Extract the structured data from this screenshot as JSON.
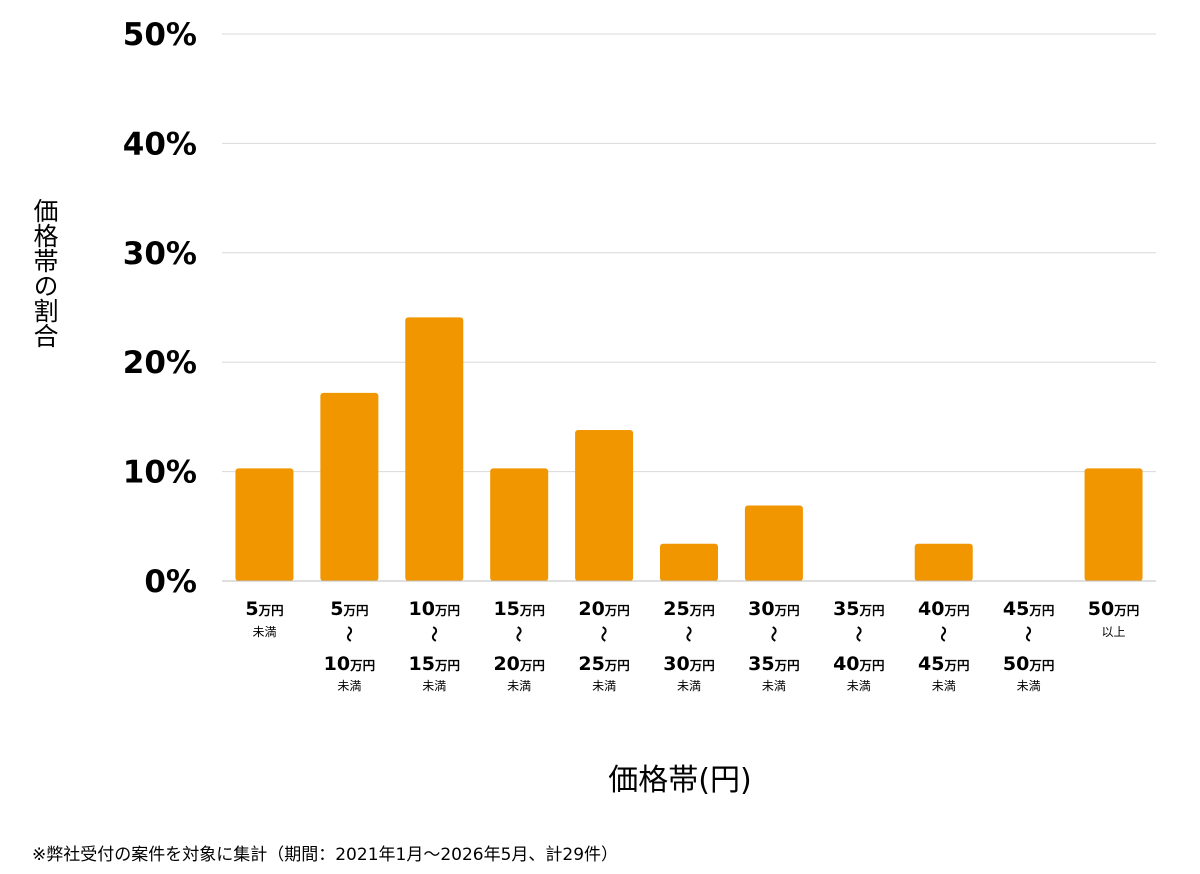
{
  "chart_data": {
    "type": "bar",
    "xlabel": "価格帯(円)",
    "ylabel": "価格帯の割合",
    "ylim": [
      0,
      50
    ],
    "yticks": [
      "0%",
      "10%",
      "20%",
      "30%",
      "40%",
      "50%"
    ],
    "grid": true,
    "bar_color": "#f29600",
    "grid_color": "#d9d9d9",
    "categories": [
      {
        "from": "5",
        "from_unit": "万円",
        "to": "",
        "to_unit": "",
        "note": "未満"
      },
      {
        "from": "5",
        "from_unit": "万円",
        "to": "10",
        "to_unit": "万円",
        "note": "未満"
      },
      {
        "from": "10",
        "from_unit": "万円",
        "to": "15",
        "to_unit": "万円",
        "note": "未満"
      },
      {
        "from": "15",
        "from_unit": "万円",
        "to": "20",
        "to_unit": "万円",
        "note": "未満"
      },
      {
        "from": "20",
        "from_unit": "万円",
        "to": "25",
        "to_unit": "万円",
        "note": "未満"
      },
      {
        "from": "25",
        "from_unit": "万円",
        "to": "30",
        "to_unit": "万円",
        "note": "未満"
      },
      {
        "from": "30",
        "from_unit": "万円",
        "to": "35",
        "to_unit": "万円",
        "note": "未満"
      },
      {
        "from": "35",
        "from_unit": "万円",
        "to": "40",
        "to_unit": "万円",
        "note": "未満"
      },
      {
        "from": "40",
        "from_unit": "万円",
        "to": "45",
        "to_unit": "万円",
        "note": "未満"
      },
      {
        "from": "45",
        "from_unit": "万円",
        "to": "50",
        "to_unit": "万円",
        "note": "未満"
      },
      {
        "from": "50",
        "from_unit": "万円",
        "to": "",
        "to_unit": "",
        "note": "以上"
      }
    ],
    "range_mark": "〜",
    "values": [
      10.3,
      17.2,
      24.1,
      10.3,
      13.8,
      3.4,
      6.9,
      0,
      3.4,
      0,
      10.3
    ]
  },
  "footnote": "※弊社受付の案件を対象に集計（期間：2021年1月〜2026年5月、計29件）"
}
